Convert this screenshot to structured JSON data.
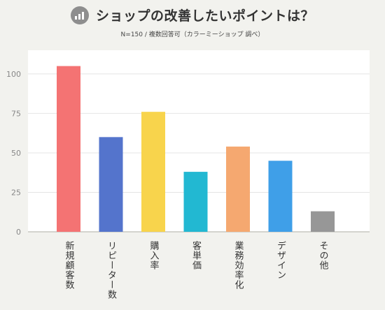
{
  "header": {
    "title": "ショップの改善したいポイントは？",
    "subtitle": "N=150 / 複数回答可（カラーミーショップ 調べ）",
    "icon": "bar-chart-icon"
  },
  "chart_data": {
    "type": "bar",
    "title": "ショップの改善したいポイントは？",
    "subtitle": "N=150 / 複数回答可（カラーミーショップ 調べ）",
    "categories": [
      "新規顧客数",
      "リピーター数",
      "購入率",
      "客単価",
      "業務効率化",
      "デザイン",
      "その他"
    ],
    "values": [
      105,
      60,
      76,
      38,
      54,
      45,
      13
    ],
    "colors": [
      "#f47373",
      "#5474cc",
      "#f8d44c",
      "#22b8d2",
      "#f5a870",
      "#3f9fe8",
      "#979797"
    ],
    "yticks": [
      0,
      25,
      50,
      75,
      100
    ],
    "ylim": [
      0,
      115
    ],
    "grid": true,
    "xlabel": "",
    "ylabel": ""
  }
}
